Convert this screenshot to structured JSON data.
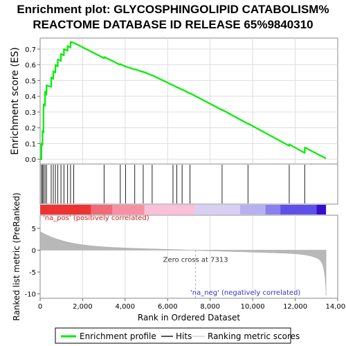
{
  "chart_data": {
    "type": "line",
    "title_line1": "Enrichment plot: GLYCOSPHINGOLIPID CATABOLISM%",
    "title_line2": "REACTOME DATABASE ID RELEASE 65%9840310",
    "es_ylabel": "Enrichment score (ES)",
    "rank_ylabel": "Ranked list metric (PreRanked)",
    "xlabel": "Rank in Ordered Dataset",
    "xlim": [
      0,
      14000
    ],
    "es_ylim": [
      -0.03,
      0.77
    ],
    "rank_ylim": [
      -11,
      8
    ],
    "x_ticks": [
      0,
      2000,
      4000,
      6000,
      8000,
      10000,
      12000,
      14000
    ],
    "x_tick_labels": [
      "0",
      "2,000",
      "4,000",
      "6,000",
      "8,000",
      "10,000",
      "12,000",
      "14,000"
    ],
    "es_ticks": [
      0.0,
      0.1,
      0.2,
      0.3,
      0.4,
      0.5,
      0.6,
      0.7
    ],
    "es_tick_labels": [
      "0.0",
      "0.1",
      "0.2",
      "0.3",
      "0.4",
      "0.5",
      "0.6",
      "0.7"
    ],
    "rank_ticks": [
      5,
      0,
      -5,
      -10
    ],
    "rank_tick_labels": [
      "5",
      "0",
      "-5",
      "-10"
    ],
    "series": [
      {
        "name": "Enrichment profile",
        "color": "#00ee00",
        "x": [
          0,
          60,
          60,
          110,
          110,
          160,
          160,
          230,
          230,
          300,
          300,
          520,
          520,
          620,
          620,
          720,
          720,
          830,
          830,
          980,
          980,
          1120,
          1120,
          1290,
          1290,
          1430,
          1430,
          1580,
          3010,
          3010,
          3770,
          3770,
          4020,
          4020,
          4450,
          4450,
          4850,
          4850,
          5270,
          5270,
          6250,
          6250,
          6430,
          6430,
          6680,
          6680,
          7050,
          7050,
          8560,
          8560,
          9780,
          9780,
          11720,
          11720,
          12450,
          12450,
          13450
        ],
        "y": [
          0.0,
          0.0,
          0.1,
          0.09,
          0.18,
          0.17,
          0.35,
          0.34,
          0.43,
          0.41,
          0.47,
          0.46,
          0.52,
          0.51,
          0.56,
          0.55,
          0.6,
          0.59,
          0.635,
          0.625,
          0.67,
          0.66,
          0.7,
          0.69,
          0.72,
          0.71,
          0.745,
          0.74,
          0.642,
          0.65,
          0.6,
          0.605,
          0.588,
          0.59,
          0.57,
          0.572,
          0.554,
          0.556,
          0.532,
          0.534,
          0.47,
          0.472,
          0.457,
          0.459,
          0.442,
          0.444,
          0.418,
          0.42,
          0.313,
          0.315,
          0.225,
          0.227,
          0.085,
          0.095,
          0.04,
          0.075,
          0.005
        ]
      }
    ],
    "hits": [
      60,
      110,
      160,
      230,
      300,
      520,
      620,
      720,
      830,
      980,
      1120,
      1290,
      1430,
      1580,
      3010,
      3770,
      4020,
      4450,
      4850,
      5270,
      6250,
      6430,
      6680,
      7050,
      8560,
      9780,
      11720,
      12450
    ],
    "zero_cross_rank": 7313,
    "zero_cross_label": "Zero cross at 7313",
    "pos_label": "'na_pos' (positively correlated)",
    "neg_label": "'na_neg' (negatively correlated)",
    "legend": [
      {
        "label": "Enrichment profile",
        "color": "#00ee00"
      },
      {
        "label": "Hits",
        "color": "#555555"
      },
      {
        "label": "Ranking metric scores",
        "color": "#dddddd"
      }
    ],
    "colorbar": [
      {
        "from": 0,
        "to": 2400,
        "color": "#ee3333"
      },
      {
        "from": 2400,
        "to": 3400,
        "color": "#f06a78"
      },
      {
        "from": 3400,
        "to": 4900,
        "color": "#f890a4"
      },
      {
        "from": 4900,
        "to": 7300,
        "color": "#f9c0d8"
      },
      {
        "from": 7300,
        "to": 9400,
        "color": "#d8d0f4"
      },
      {
        "from": 9400,
        "to": 10600,
        "color": "#b6b0f2"
      },
      {
        "from": 10600,
        "to": 11300,
        "color": "#8a80ee"
      },
      {
        "from": 11300,
        "to": 13000,
        "color": "#6050ea"
      },
      {
        "from": 13000,
        "to": 13450,
        "color": "#3410cc"
      }
    ]
  }
}
